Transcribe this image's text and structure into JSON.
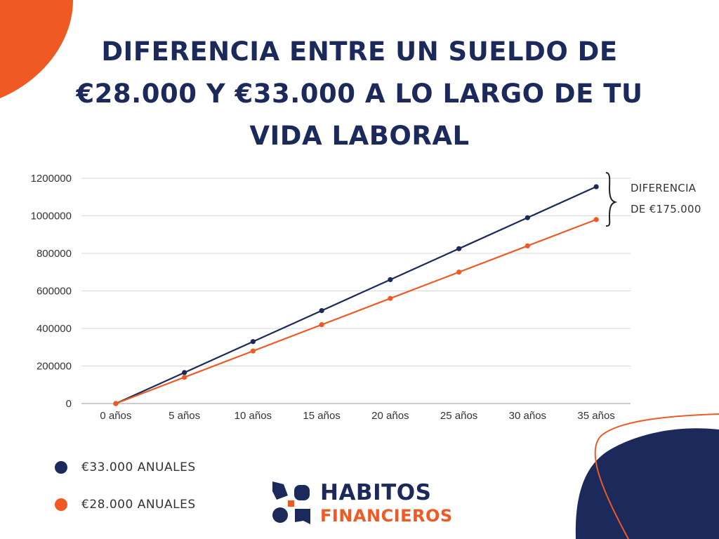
{
  "title_lines": [
    "DIFERENCIA ENTRE UN SUELDO DE",
    "€28.000 Y €33.000 A LO LARGO DE TU",
    "VIDA LABORAL"
  ],
  "chart_data": {
    "type": "line",
    "title": "DIFERENCIA ENTRE UN SUELDO DE €28.000 Y €33.000 A LO LARGO DE TU VIDA LABORAL",
    "categories": [
      "0 años",
      "5 años",
      "10 años",
      "15 años",
      "20 años",
      "25 años",
      "30 años",
      "35 años"
    ],
    "series": [
      {
        "name": "€33.000 ANUALES",
        "color": "#1b2a5a",
        "values": [
          0,
          165000,
          330000,
          495000,
          660000,
          825000,
          990000,
          1155000
        ]
      },
      {
        "name": "€28.000 ANUALES",
        "color": "#ef5a24",
        "values": [
          0,
          140000,
          280000,
          420000,
          560000,
          700000,
          840000,
          980000
        ]
      }
    ],
    "ylim": [
      0,
      1200000
    ],
    "yticks": [
      0,
      200000,
      400000,
      600000,
      800000,
      1000000,
      1200000
    ],
    "grid": true,
    "legend_position": "bottom-left",
    "annotation": [
      "DIFERENCIA",
      "DE €175.000"
    ]
  },
  "logo": {
    "line1": "HABITOS",
    "line2": "FINANCIEROS"
  },
  "colors": {
    "navy": "#1b2a5a",
    "orange": "#ef5a24"
  }
}
